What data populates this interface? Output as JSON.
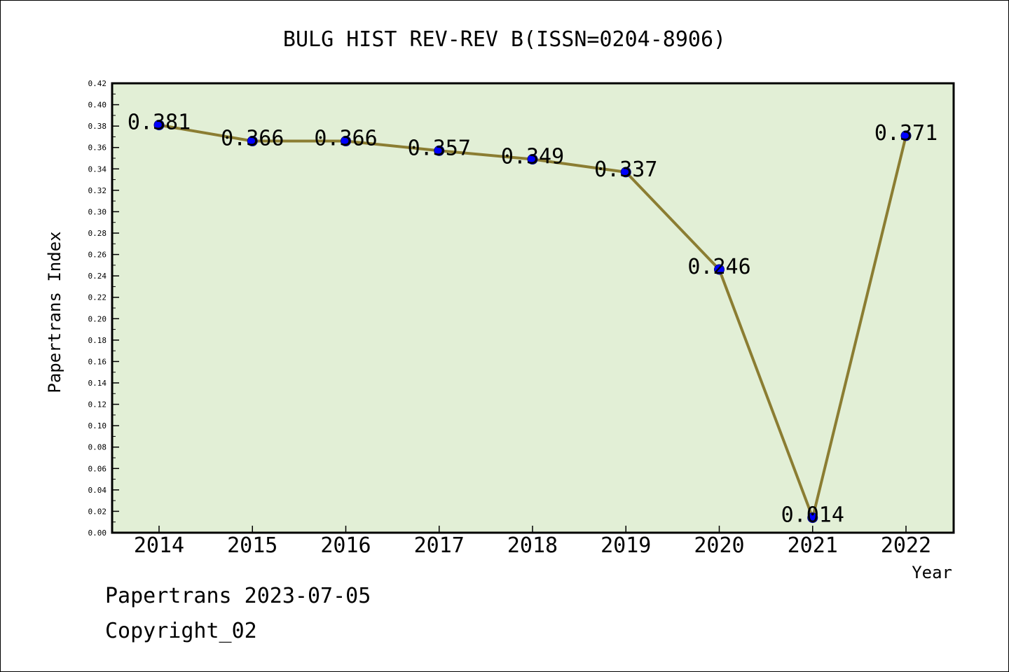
{
  "chart_data": {
    "type": "line",
    "title": "BULG HIST REV-REV B(ISSN=0204-8906)",
    "xlabel": "Year",
    "ylabel": "Papertrans Index",
    "categories": [
      "2014",
      "2015",
      "2016",
      "2017",
      "2018",
      "2019",
      "2020",
      "2021",
      "2022"
    ],
    "values": [
      0.381,
      0.366,
      0.366,
      0.357,
      0.349,
      0.337,
      0.246,
      0.014,
      0.371
    ],
    "data_labels": [
      "0.381",
      "0.366",
      "0.366",
      "0.357",
      "0.349",
      "0.337",
      "0.246",
      "0.014",
      "0.371"
    ],
    "y_ticks": [
      "0.00",
      "0.02",
      "0.04",
      "0.06",
      "0.08",
      "0.10",
      "0.12",
      "0.14",
      "0.16",
      "0.18",
      "0.20",
      "0.22",
      "0.24",
      "0.26",
      "0.28",
      "0.30",
      "0.32",
      "0.34",
      "0.36",
      "0.38",
      "0.40",
      "0.42"
    ],
    "ylim": [
      0,
      0.42
    ],
    "grid": false,
    "legend": "none",
    "colors": {
      "plot_background": "#e2efd6",
      "line": "#8b7d32",
      "marker": "#0000ff",
      "marker_edge": "#00008b"
    }
  },
  "footer": {
    "line1": "Papertrans 2023-07-05",
    "line2": "Copyright_02"
  }
}
